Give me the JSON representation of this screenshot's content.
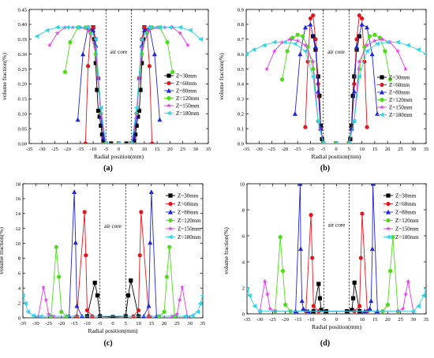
{
  "colors": {
    "Z=30mm": "#000000",
    "Z=60mm": "#e8141c",
    "Z=80mm": "#1f26d6",
    "Z=120mm": "#4ddb1a",
    "Z=150mm": "#e23de6",
    "Z=180mm": "#2fd6e6"
  },
  "chart_data": [
    {
      "panel": "(a)",
      "type": "line",
      "xlabel": "Radial position(mm)",
      "ylabel": "volume fraction(%)",
      "xlim": [
        -35,
        35
      ],
      "ylim": [
        0,
        0.45
      ],
      "xticks": [
        -35,
        -30,
        -25,
        -20,
        -15,
        -10,
        -5,
        0,
        5,
        10,
        15,
        20,
        25,
        30,
        35
      ],
      "yticks": [
        0,
        0.05,
        0.1,
        0.15,
        0.2,
        0.25,
        0.3,
        0.35,
        0.4,
        0.45
      ],
      "ytick_labels": [
        "0.00",
        "0.05",
        "0.10",
        "0.15",
        "0.20",
        "0.25",
        "0.30",
        "0.35",
        "0.40",
        "0.45"
      ],
      "annotation": "air core",
      "vlines": [
        -5,
        5
      ],
      "legend_position": "right",
      "series": [
        {
          "name": "Z=30mm",
          "marker": "square",
          "x": [
            -10,
            -9.5,
            -9,
            -8.5,
            -8,
            -7.5,
            -7,
            -6.5,
            -6,
            -5,
            -3,
            0,
            3,
            5,
            6,
            6.5,
            7,
            7.5,
            8,
            8.5,
            9,
            9.5,
            10
          ],
          "y": [
            0.39,
            0.35,
            0.27,
            0.18,
            0.11,
            0.09,
            0.06,
            0.03,
            0.01,
            0.0,
            0.0,
            0.0,
            0.0,
            0.0,
            0.01,
            0.03,
            0.06,
            0.09,
            0.11,
            0.18,
            0.27,
            0.35,
            0.39
          ]
        },
        {
          "name": "Z=60mm",
          "marker": "circle",
          "x": [
            -13,
            -12,
            -11,
            -10,
            -9,
            -8,
            -7,
            -6,
            -5,
            0,
            5,
            6,
            7,
            8,
            9,
            10,
            11,
            12,
            13
          ],
          "y": [
            0.0,
            0.26,
            0.38,
            0.39,
            0.35,
            0.22,
            0.1,
            0.02,
            0.0,
            0.0,
            0.0,
            0.02,
            0.1,
            0.22,
            0.35,
            0.39,
            0.38,
            0.26,
            0.0
          ]
        },
        {
          "name": "Z=80mm",
          "marker": "triangle",
          "x": [
            -16,
            -14,
            -12,
            -10,
            -9,
            -8,
            -7,
            -6,
            -5,
            0,
            5,
            6,
            7,
            8,
            9,
            10,
            12,
            14,
            16
          ],
          "y": [
            0.08,
            0.3,
            0.39,
            0.38,
            0.33,
            0.22,
            0.09,
            0.02,
            0.0,
            0.0,
            0.0,
            0.02,
            0.09,
            0.22,
            0.33,
            0.38,
            0.39,
            0.3,
            0.08
          ]
        },
        {
          "name": "Z=120mm",
          "marker": "circle",
          "x": [
            -21,
            -19,
            -16,
            -13,
            -11,
            -9,
            -7,
            -5,
            0,
            5,
            7,
            9,
            11,
            13,
            16,
            19,
            21
          ],
          "y": [
            0.24,
            0.34,
            0.39,
            0.39,
            0.37,
            0.3,
            0.1,
            0.0,
            0.0,
            0.0,
            0.1,
            0.3,
            0.37,
            0.39,
            0.39,
            0.34,
            0.24
          ]
        },
        {
          "name": "Z=150mm",
          "marker": "star",
          "x": [
            -27,
            -24,
            -21,
            -18,
            -15,
            -12,
            -9,
            -7,
            -5,
            0,
            5,
            7,
            9,
            12,
            15,
            18,
            21,
            24,
            27
          ],
          "y": [
            0.33,
            0.37,
            0.39,
            0.39,
            0.39,
            0.38,
            0.32,
            0.1,
            0.0,
            0.0,
            0.0,
            0.1,
            0.32,
            0.38,
            0.39,
            0.39,
            0.39,
            0.37,
            0.33
          ]
        },
        {
          "name": "Z=180mm",
          "marker": "triangle-left",
          "x": [
            -32,
            -28,
            -24,
            -20,
            -16,
            -12,
            -9,
            -7,
            -5,
            0,
            5,
            7,
            9,
            12,
            16,
            20,
            24,
            28,
            32
          ],
          "y": [
            0.36,
            0.38,
            0.39,
            0.39,
            0.39,
            0.39,
            0.35,
            0.12,
            0.0,
            0.0,
            0.0,
            0.12,
            0.35,
            0.39,
            0.39,
            0.39,
            0.39,
            0.38,
            0.35
          ]
        }
      ]
    },
    {
      "panel": "(b)",
      "type": "line",
      "xlabel": "Radial position(mm)",
      "ylabel": "volume fraction(%)",
      "xlim": [
        -35,
        35
      ],
      "ylim": [
        0,
        0.9
      ],
      "xticks": [
        -35,
        -30,
        -25,
        -20,
        -15,
        -10,
        -5,
        0,
        5,
        10,
        15,
        20,
        25,
        30,
        35
      ],
      "yticks": [
        0,
        0.1,
        0.2,
        0.3,
        0.4,
        0.5,
        0.6,
        0.7,
        0.8,
        0.9
      ],
      "ytick_labels": [
        "0.0",
        "0.1",
        "0.2",
        "0.3",
        "0.4",
        "0.5",
        "0.6",
        "0.7",
        "0.8",
        "0.9"
      ],
      "annotation": "air core",
      "vlines": [
        -5,
        5
      ],
      "legend_position": "right",
      "series": [
        {
          "name": "Z=30mm",
          "marker": "square",
          "x": [
            -9,
            -8,
            -7,
            -6.5,
            -6,
            -5.5,
            -5,
            0,
            5,
            5.5,
            6,
            6.5,
            7,
            8,
            9
          ],
          "y": [
            0.72,
            0.63,
            0.45,
            0.32,
            0.12,
            0.03,
            0.0,
            0.0,
            0.0,
            0.03,
            0.12,
            0.32,
            0.45,
            0.63,
            0.72
          ]
        },
        {
          "name": "Z=60mm",
          "marker": "circle",
          "x": [
            -12,
            -11,
            -10,
            -9,
            -8,
            -7,
            -6,
            -5,
            0,
            5,
            6,
            7,
            8,
            9,
            10,
            11,
            12
          ],
          "y": [
            0.11,
            0.55,
            0.84,
            0.86,
            0.7,
            0.4,
            0.1,
            0.0,
            0.0,
            0.0,
            0.1,
            0.4,
            0.7,
            0.86,
            0.84,
            0.55,
            0.11
          ]
        },
        {
          "name": "Z=80mm",
          "marker": "triangle",
          "x": [
            -16,
            -14,
            -12,
            -10,
            -8,
            -7,
            -6,
            -5,
            0,
            5,
            6,
            7,
            8,
            10,
            12,
            14,
            16
          ],
          "y": [
            0.2,
            0.6,
            0.78,
            0.8,
            0.65,
            0.35,
            0.1,
            0.0,
            0.0,
            0.0,
            0.1,
            0.35,
            0.65,
            0.8,
            0.78,
            0.6,
            0.2
          ]
        },
        {
          "name": "Z=120mm",
          "marker": "circle",
          "x": [
            -21,
            -19,
            -17,
            -15,
            -13,
            -11,
            -9,
            -7,
            -5,
            0,
            5,
            7,
            9,
            11,
            13,
            15,
            17,
            19,
            21
          ],
          "y": [
            0.43,
            0.62,
            0.71,
            0.73,
            0.72,
            0.65,
            0.5,
            0.15,
            0.0,
            0.0,
            0.0,
            0.15,
            0.5,
            0.65,
            0.72,
            0.73,
            0.71,
            0.62,
            0.43
          ]
        },
        {
          "name": "Z=150mm",
          "marker": "star",
          "x": [
            -27,
            -24,
            -21,
            -18,
            -15,
            -12,
            -9,
            -7,
            -5,
            0,
            5,
            7,
            9,
            12,
            15,
            18,
            21,
            24,
            27
          ],
          "y": [
            0.5,
            0.62,
            0.68,
            0.7,
            0.69,
            0.66,
            0.55,
            0.15,
            0.0,
            0.0,
            0.0,
            0.15,
            0.55,
            0.66,
            0.69,
            0.7,
            0.68,
            0.62,
            0.5
          ]
        },
        {
          "name": "Z=180mm",
          "marker": "triangle-left",
          "x": [
            -35,
            -32,
            -28,
            -24,
            -20,
            -16,
            -12,
            -9,
            -7,
            -5,
            0,
            5,
            7,
            9,
            12,
            16,
            20,
            24,
            28,
            32,
            35
          ],
          "y": [
            0.6,
            0.63,
            0.66,
            0.68,
            0.68,
            0.67,
            0.62,
            0.45,
            0.15,
            0.0,
            0.0,
            0.0,
            0.15,
            0.45,
            0.62,
            0.67,
            0.68,
            0.68,
            0.66,
            0.63,
            0.6
          ]
        }
      ]
    },
    {
      "panel": "(c)",
      "type": "line",
      "xlabel": "Radial position(mm)",
      "ylabel": "volume fraction(%)",
      "xlim": [
        -35,
        35
      ],
      "ylim": [
        0,
        18
      ],
      "xticks": [
        -35,
        -30,
        -25,
        -20,
        -15,
        -10,
        -5,
        0,
        5,
        10,
        15,
        20,
        25,
        30,
        35
      ],
      "yticks": [
        0,
        2,
        4,
        6,
        8,
        10,
        12,
        14,
        16,
        18
      ],
      "ytick_labels": [
        "0",
        "2",
        "4",
        "6",
        "8",
        "10",
        "12",
        "14",
        "16",
        "18"
      ],
      "annotation": "air core",
      "vlines": [
        -5,
        5
      ],
      "legend_position": "top-right",
      "series": [
        {
          "name": "Z=30mm",
          "marker": "square",
          "x": [
            -10,
            -7,
            -6,
            -5,
            0,
            5,
            6,
            7,
            10
          ],
          "y": [
            0.2,
            4.7,
            3.0,
            0.2,
            0.1,
            0.2,
            3.0,
            5.0,
            0.2
          ]
        },
        {
          "name": "Z=60mm",
          "marker": "circle",
          "x": [
            -14,
            -11,
            -10.5,
            -10,
            -8,
            8,
            10,
            10.5,
            11,
            14
          ],
          "y": [
            0.2,
            14.2,
            8.4,
            1.0,
            0.2,
            0.2,
            1.0,
            8.4,
            14.2,
            0.2
          ]
        },
        {
          "name": "Z=80mm",
          "marker": "triangle",
          "x": [
            -17,
            -15,
            -14.5,
            -14,
            -12,
            12,
            14,
            14.5,
            15,
            17
          ],
          "y": [
            0.2,
            16.9,
            10.1,
            1.6,
            0.2,
            0.2,
            1.6,
            10.1,
            16.9,
            0.2
          ]
        },
        {
          "name": "Z=120mm",
          "marker": "circle",
          "x": [
            -24,
            -22,
            -21,
            -20,
            -18,
            18,
            20,
            21,
            22,
            24
          ],
          "y": [
            0.2,
            9.5,
            5.5,
            0.8,
            0.2,
            0.2,
            0.8,
            5.5,
            9.5,
            0.2
          ]
        },
        {
          "name": "Z=150mm",
          "marker": "star",
          "x": [
            -29,
            -27,
            -26,
            -25,
            -23,
            23,
            25,
            26,
            27,
            29
          ],
          "y": [
            0.2,
            4.1,
            2.4,
            0.5,
            0.2,
            0.2,
            0.5,
            2.4,
            4.1,
            0.2
          ]
        },
        {
          "name": "Z=180mm",
          "marker": "triangle-left",
          "x": [
            -35,
            -34,
            -33,
            -31,
            -28,
            28,
            31,
            33,
            34,
            35
          ],
          "y": [
            3.0,
            1.9,
            0.8,
            0.3,
            0.2,
            0.2,
            0.3,
            0.8,
            1.9,
            3.0
          ]
        }
      ]
    },
    {
      "panel": "(d)",
      "type": "line",
      "xlabel": "Radial position(mm)",
      "ylabel": "volume fraction(%)",
      "xlim": [
        -35,
        35
      ],
      "ylim": [
        0,
        10
      ],
      "xticks": [
        -35,
        -30,
        -25,
        -20,
        -15,
        -10,
        -5,
        0,
        5,
        10,
        15,
        20,
        25,
        30,
        35
      ],
      "yticks": [
        0,
        2,
        4,
        6,
        8,
        10
      ],
      "ytick_labels": [
        "0",
        "2",
        "4",
        "6",
        "8",
        "10"
      ],
      "annotation": "air core",
      "vlines": [
        -5,
        5
      ],
      "legend_position": "top-right",
      "series": [
        {
          "name": "Z=30mm",
          "marker": "square",
          "x": [
            -9,
            -7,
            -6.5,
            -6,
            -4,
            4,
            6,
            6.5,
            7,
            9
          ],
          "y": [
            0.2,
            2.3,
            1.2,
            0.3,
            0.2,
            0.2,
            0.3,
            1.2,
            2.4,
            0.2
          ]
        },
        {
          "name": "Z=60mm",
          "marker": "circle",
          "x": [
            -12,
            -10,
            -9.5,
            -9,
            -7,
            7,
            9,
            9.5,
            10,
            12
          ],
          "y": [
            0.2,
            7.6,
            4.3,
            0.6,
            0.2,
            0.2,
            0.6,
            4.3,
            7.7,
            0.2
          ]
        },
        {
          "name": "Z=80mm",
          "marker": "triangle",
          "x": [
            -16,
            -14.2,
            -14,
            -13.5,
            -13,
            -11,
            11,
            13,
            13.5,
            14,
            14.2,
            16
          ],
          "y": [
            0.2,
            10.0,
            5.0,
            1.0,
            0.4,
            0.2,
            0.2,
            0.4,
            1.0,
            5.0,
            10.0,
            0.2
          ]
        },
        {
          "name": "Z=120mm",
          "marker": "circle",
          "x": [
            -24,
            -22,
            -21,
            -20,
            -18,
            18,
            20,
            21,
            22,
            24
          ],
          "y": [
            0.2,
            5.9,
            3.3,
            0.7,
            0.2,
            0.2,
            0.7,
            3.3,
            5.9,
            0.2
          ]
        },
        {
          "name": "Z=150mm",
          "marker": "star",
          "x": [
            -30,
            -28,
            -27,
            -26,
            -24,
            24,
            26,
            27,
            28,
            30
          ],
          "y": [
            0.2,
            2.5,
            1.5,
            0.4,
            0.2,
            0.2,
            0.4,
            1.5,
            2.5,
            0.2
          ]
        },
        {
          "name": "Z=180mm",
          "marker": "triangle-left",
          "x": [
            -35,
            -34,
            -32,
            -30,
            30,
            32,
            34,
            35
          ],
          "y": [
            1.9,
            1.4,
            0.6,
            0.2,
            0.2,
            0.6,
            1.4,
            1.9
          ]
        }
      ]
    }
  ]
}
